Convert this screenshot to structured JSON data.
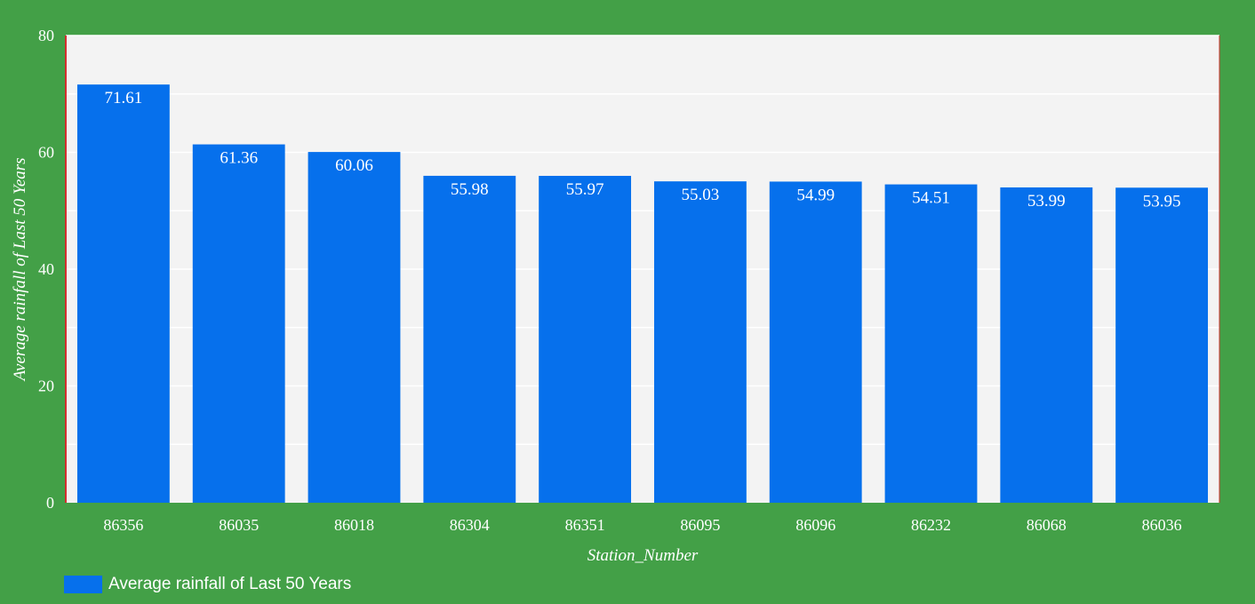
{
  "chart_data": {
    "type": "bar",
    "title": "",
    "xlabel": "Station_Number",
    "ylabel": "Average rainfall of Last 50 Years",
    "categories": [
      "86356",
      "86035",
      "86018",
      "86304",
      "86351",
      "86095",
      "86096",
      "86232",
      "86068",
      "86036"
    ],
    "series": [
      {
        "name": "Average rainfall of Last 50 Years",
        "values": [
          71.61,
          61.36,
          60.06,
          55.98,
          55.97,
          55.03,
          54.99,
          54.51,
          53.99,
          53.95
        ],
        "value_labels": [
          "71.61",
          "61.36",
          "60.06",
          "55.98",
          "55.97",
          "55.03",
          "54.99",
          "54.51",
          "53.99",
          "53.95"
        ],
        "color": "#0670ec"
      }
    ],
    "ylim": [
      0,
      80
    ],
    "yticks": [
      "0",
      "20",
      "40",
      "60",
      "80"
    ],
    "grid": true,
    "legend": "bottom-left",
    "colors": {
      "background": "#43a047",
      "plot_background": "#f3f3f3",
      "gridline": "#ffffff",
      "axis_line": "#d32f2f",
      "text": "#ffffff"
    }
  }
}
